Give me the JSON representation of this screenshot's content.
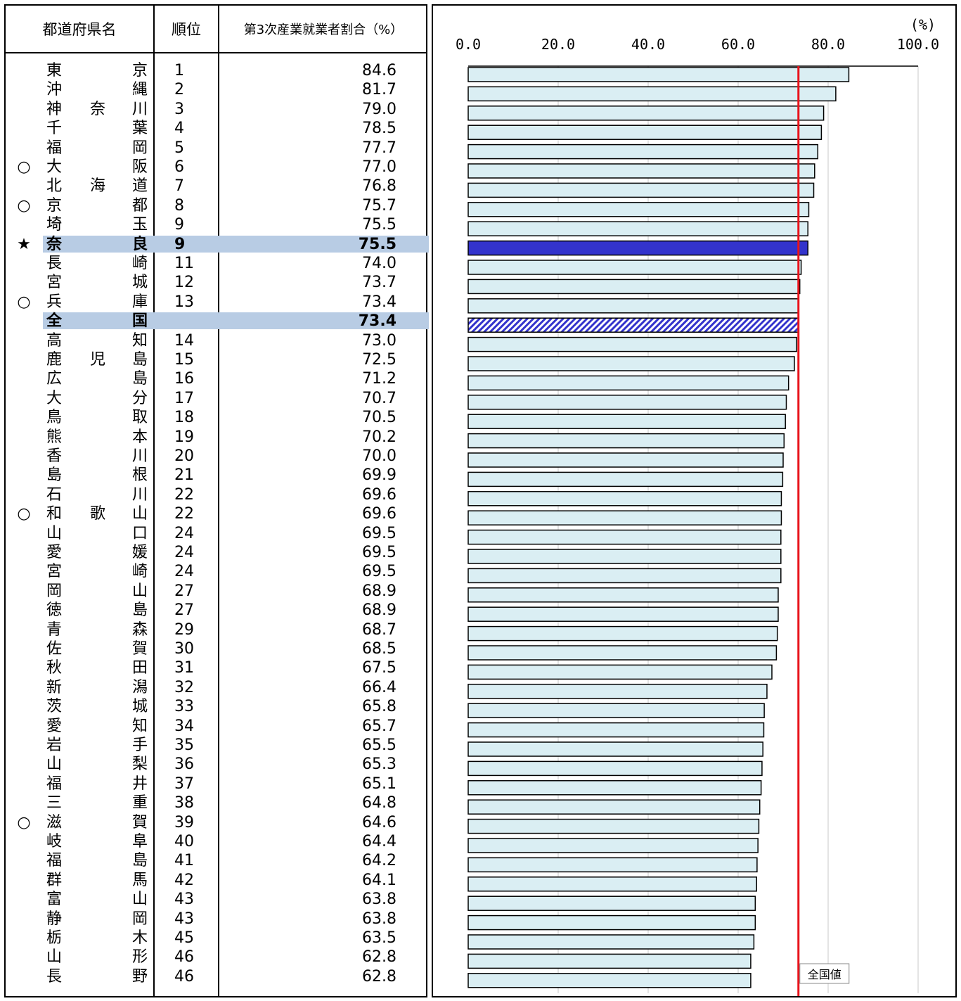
{
  "table": {
    "headers": {
      "name": "都道府県名",
      "rank": "順位",
      "value": "第3次産業就業者割合（%）"
    },
    "rows": [
      {
        "mark": "",
        "c1": "東",
        "c2": "",
        "c3": "京",
        "rank": "1",
        "value": "84.6"
      },
      {
        "mark": "",
        "c1": "沖",
        "c2": "",
        "c3": "縄",
        "rank": "2",
        "value": "81.7"
      },
      {
        "mark": "",
        "c1": "神",
        "c2": "奈",
        "c3": "川",
        "rank": "3",
        "value": "79.0"
      },
      {
        "mark": "",
        "c1": "千",
        "c2": "",
        "c3": "葉",
        "rank": "4",
        "value": "78.5"
      },
      {
        "mark": "",
        "c1": "福",
        "c2": "",
        "c3": "岡",
        "rank": "5",
        "value": "77.7"
      },
      {
        "mark": "○",
        "c1": "大",
        "c2": "",
        "c3": "阪",
        "rank": "6",
        "value": "77.0"
      },
      {
        "mark": "",
        "c1": "北",
        "c2": "海",
        "c3": "道",
        "rank": "7",
        "value": "76.8"
      },
      {
        "mark": "○",
        "c1": "京",
        "c2": "",
        "c3": "都",
        "rank": "8",
        "value": "75.7"
      },
      {
        "mark": "",
        "c1": "埼",
        "c2": "",
        "c3": "玉",
        "rank": "9",
        "value": "75.5"
      },
      {
        "mark": "★",
        "c1": "奈",
        "c2": "",
        "c3": "良",
        "rank": "9",
        "value": "75.5",
        "highlight": true,
        "bar": "nara"
      },
      {
        "mark": "",
        "c1": "長",
        "c2": "",
        "c3": "崎",
        "rank": "11",
        "value": "74.0"
      },
      {
        "mark": "",
        "c1": "宮",
        "c2": "",
        "c3": "城",
        "rank": "12",
        "value": "73.7"
      },
      {
        "mark": "○",
        "c1": "兵",
        "c2": "",
        "c3": "庫",
        "rank": "13",
        "value": "73.4"
      },
      {
        "mark": "",
        "c1": "全",
        "c2": "",
        "c3": "国",
        "rank": "",
        "value": "73.4",
        "highlight": true,
        "bar": "national"
      },
      {
        "mark": "",
        "c1": "高",
        "c2": "",
        "c3": "知",
        "rank": "14",
        "value": "73.0"
      },
      {
        "mark": "",
        "c1": "鹿",
        "c2": "児",
        "c3": "島",
        "rank": "15",
        "value": "72.5"
      },
      {
        "mark": "",
        "c1": "広",
        "c2": "",
        "c3": "島",
        "rank": "16",
        "value": "71.2"
      },
      {
        "mark": "",
        "c1": "大",
        "c2": "",
        "c3": "分",
        "rank": "17",
        "value": "70.7"
      },
      {
        "mark": "",
        "c1": "鳥",
        "c2": "",
        "c3": "取",
        "rank": "18",
        "value": "70.5"
      },
      {
        "mark": "",
        "c1": "熊",
        "c2": "",
        "c3": "本",
        "rank": "19",
        "value": "70.2"
      },
      {
        "mark": "",
        "c1": "香",
        "c2": "",
        "c3": "川",
        "rank": "20",
        "value": "70.0"
      },
      {
        "mark": "",
        "c1": "島",
        "c2": "",
        "c3": "根",
        "rank": "21",
        "value": "69.9"
      },
      {
        "mark": "",
        "c1": "石",
        "c2": "",
        "c3": "川",
        "rank": "22",
        "value": "69.6"
      },
      {
        "mark": "○",
        "c1": "和",
        "c2": "歌",
        "c3": "山",
        "rank": "22",
        "value": "69.6"
      },
      {
        "mark": "",
        "c1": "山",
        "c2": "",
        "c3": "口",
        "rank": "24",
        "value": "69.5"
      },
      {
        "mark": "",
        "c1": "愛",
        "c2": "",
        "c3": "媛",
        "rank": "24",
        "value": "69.5"
      },
      {
        "mark": "",
        "c1": "宮",
        "c2": "",
        "c3": "崎",
        "rank": "24",
        "value": "69.5"
      },
      {
        "mark": "",
        "c1": "岡",
        "c2": "",
        "c3": "山",
        "rank": "27",
        "value": "68.9"
      },
      {
        "mark": "",
        "c1": "徳",
        "c2": "",
        "c3": "島",
        "rank": "27",
        "value": "68.9"
      },
      {
        "mark": "",
        "c1": "青",
        "c2": "",
        "c3": "森",
        "rank": "29",
        "value": "68.7"
      },
      {
        "mark": "",
        "c1": "佐",
        "c2": "",
        "c3": "賀",
        "rank": "30",
        "value": "68.5"
      },
      {
        "mark": "",
        "c1": "秋",
        "c2": "",
        "c3": "田",
        "rank": "31",
        "value": "67.5"
      },
      {
        "mark": "",
        "c1": "新",
        "c2": "",
        "c3": "潟",
        "rank": "32",
        "value": "66.4"
      },
      {
        "mark": "",
        "c1": "茨",
        "c2": "",
        "c3": "城",
        "rank": "33",
        "value": "65.8"
      },
      {
        "mark": "",
        "c1": "愛",
        "c2": "",
        "c3": "知",
        "rank": "34",
        "value": "65.7"
      },
      {
        "mark": "",
        "c1": "岩",
        "c2": "",
        "c3": "手",
        "rank": "35",
        "value": "65.5"
      },
      {
        "mark": "",
        "c1": "山",
        "c2": "",
        "c3": "梨",
        "rank": "36",
        "value": "65.3"
      },
      {
        "mark": "",
        "c1": "福",
        "c2": "",
        "c3": "井",
        "rank": "37",
        "value": "65.1"
      },
      {
        "mark": "",
        "c1": "三",
        "c2": "",
        "c3": "重",
        "rank": "38",
        "value": "64.8"
      },
      {
        "mark": "○",
        "c1": "滋",
        "c2": "",
        "c3": "賀",
        "rank": "39",
        "value": "64.6"
      },
      {
        "mark": "",
        "c1": "岐",
        "c2": "",
        "c3": "阜",
        "rank": "40",
        "value": "64.4"
      },
      {
        "mark": "",
        "c1": "福",
        "c2": "",
        "c3": "島",
        "rank": "41",
        "value": "64.2"
      },
      {
        "mark": "",
        "c1": "群",
        "c2": "",
        "c3": "馬",
        "rank": "42",
        "value": "64.1"
      },
      {
        "mark": "",
        "c1": "富",
        "c2": "",
        "c3": "山",
        "rank": "43",
        "value": "63.8"
      },
      {
        "mark": "",
        "c1": "静",
        "c2": "",
        "c3": "岡",
        "rank": "43",
        "value": "63.8"
      },
      {
        "mark": "",
        "c1": "栃",
        "c2": "",
        "c3": "木",
        "rank": "45",
        "value": "63.5"
      },
      {
        "mark": "",
        "c1": "山",
        "c2": "",
        "c3": "形",
        "rank": "46",
        "value": "62.8"
      },
      {
        "mark": "",
        "c1": "長",
        "c2": "",
        "c3": "野",
        "rank": "46",
        "value": "62.8"
      }
    ]
  },
  "chart_data": {
    "type": "bar",
    "orientation": "horizontal",
    "unit": "(%)",
    "xlim": [
      0,
      100
    ],
    "xticks": [
      "0.0",
      "20.0",
      "40.0",
      "60.0",
      "80.0",
      "100.0"
    ],
    "grid": true,
    "reference_line": {
      "value": 73.4,
      "label": "全国値",
      "color": "#e8141c"
    },
    "colors": {
      "default": "#daeef3",
      "nara": "#3333cc",
      "national_hatch": "#3333cc",
      "border": "#000000",
      "grid": "#c8c8c8"
    },
    "categories": [
      "東京",
      "沖縄",
      "神奈川",
      "千葉",
      "福岡",
      "大阪",
      "北海道",
      "京都",
      "埼玉",
      "奈良",
      "長崎",
      "宮城",
      "兵庫",
      "全国",
      "高知",
      "鹿児島",
      "広島",
      "大分",
      "鳥取",
      "熊本",
      "香川",
      "島根",
      "石川",
      "和歌山",
      "山口",
      "愛媛",
      "宮崎",
      "岡山",
      "徳島",
      "青森",
      "佐賀",
      "秋田",
      "新潟",
      "茨城",
      "愛知",
      "岩手",
      "山梨",
      "福井",
      "三重",
      "滋賀",
      "岐阜",
      "福島",
      "群馬",
      "富山",
      "静岡",
      "栃木",
      "山形",
      "長野"
    ],
    "values": [
      84.6,
      81.7,
      79.0,
      78.5,
      77.7,
      77.0,
      76.8,
      75.7,
      75.5,
      75.5,
      74.0,
      73.7,
      73.4,
      73.4,
      73.0,
      72.5,
      71.2,
      70.7,
      70.5,
      70.2,
      70.0,
      69.9,
      69.6,
      69.6,
      69.5,
      69.5,
      69.5,
      68.9,
      68.9,
      68.7,
      68.5,
      67.5,
      66.4,
      65.8,
      65.7,
      65.5,
      65.3,
      65.1,
      64.8,
      64.6,
      64.4,
      64.2,
      64.1,
      63.8,
      63.8,
      63.5,
      62.8,
      62.8
    ]
  }
}
